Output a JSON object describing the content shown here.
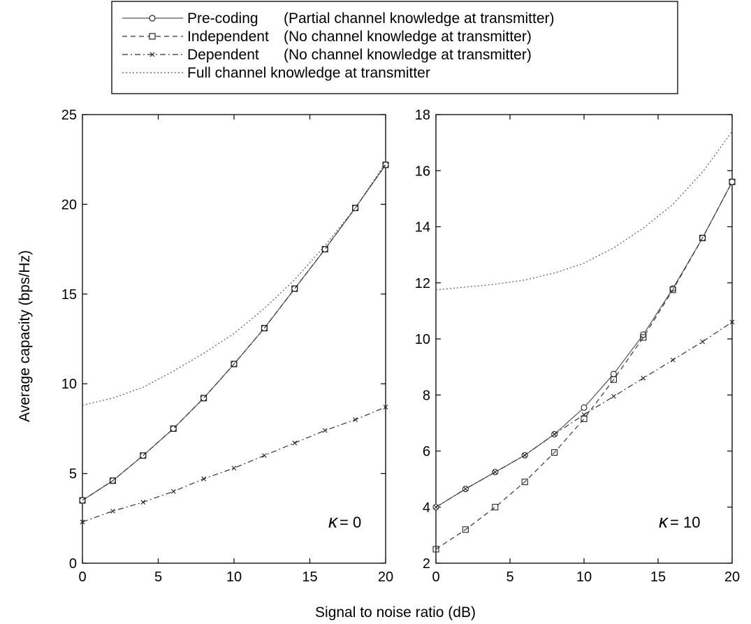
{
  "chart_data": [
    {
      "type": "line",
      "panel": "left",
      "annotation": {
        "symbol": "κ",
        "text": "= 0"
      },
      "xlabel": "Signal to noise ratio (dB)",
      "ylabel": "Average capacity (bps/Hz)",
      "xlim": [
        0,
        20
      ],
      "ylim": [
        0,
        25
      ],
      "xticks": [
        0,
        5,
        10,
        15,
        20
      ],
      "yticks": [
        0,
        5,
        10,
        15,
        20,
        25
      ],
      "x": [
        0,
        2,
        4,
        6,
        8,
        10,
        12,
        14,
        16,
        18,
        20
      ],
      "series": [
        {
          "name": "Pre-coding (Partial channel knowledge at transmitter)",
          "style": "solid",
          "marker": "circle",
          "values": [
            3.5,
            4.6,
            6.0,
            7.5,
            9.2,
            11.1,
            13.1,
            15.3,
            17.5,
            19.8,
            22.2
          ]
        },
        {
          "name": "Independent (No channel knowledge at transmitter)",
          "style": "dashed",
          "marker": "square",
          "values": [
            3.5,
            4.6,
            6.0,
            7.5,
            9.2,
            11.1,
            13.1,
            15.3,
            17.5,
            19.8,
            22.2
          ]
        },
        {
          "name": "Dependent (No channel knowledge at transmitter)",
          "style": "dashdot",
          "marker": "x",
          "values": [
            2.3,
            2.9,
            3.4,
            4.0,
            4.7,
            5.3,
            6.0,
            6.7,
            7.4,
            8.0,
            8.7
          ]
        },
        {
          "name": "Full channel knowledge at transmitter",
          "style": "dotted",
          "marker": "none",
          "values": [
            8.8,
            9.2,
            9.8,
            10.7,
            11.7,
            12.8,
            14.2,
            15.8,
            17.7,
            19.8,
            22.3
          ]
        }
      ]
    },
    {
      "type": "line",
      "panel": "right",
      "annotation": {
        "symbol": "κ",
        "text": "= 10"
      },
      "xlim": [
        0,
        20
      ],
      "ylim": [
        2,
        18
      ],
      "xticks": [
        0,
        5,
        10,
        15,
        20
      ],
      "yticks": [
        2,
        4,
        6,
        8,
        10,
        12,
        14,
        16,
        18
      ],
      "x": [
        0,
        2,
        4,
        6,
        8,
        10,
        12,
        14,
        16,
        18,
        20
      ],
      "series": [
        {
          "name": "Pre-coding (Partial channel knowledge at transmitter)",
          "style": "solid",
          "marker": "circle",
          "values": [
            4.0,
            4.65,
            5.25,
            5.85,
            6.6,
            7.55,
            8.75,
            10.15,
            11.8,
            13.6,
            15.6
          ]
        },
        {
          "name": "Independent (No channel knowledge at transmitter)",
          "style": "dashed",
          "marker": "square",
          "values": [
            2.5,
            3.2,
            4.0,
            4.9,
            5.95,
            7.15,
            8.55,
            10.05,
            11.75,
            13.6,
            15.6
          ]
        },
        {
          "name": "Dependent (No channel knowledge at transmitter)",
          "style": "dashdot",
          "marker": "x",
          "values": [
            4.0,
            4.65,
            5.25,
            5.85,
            6.6,
            7.3,
            7.95,
            8.6,
            9.25,
            9.9,
            10.6
          ]
        },
        {
          "name": "Full channel knowledge at transmitter",
          "style": "dotted",
          "marker": "none",
          "values": [
            11.75,
            11.85,
            11.95,
            12.1,
            12.35,
            12.7,
            13.25,
            13.95,
            14.8,
            15.95,
            17.4
          ]
        }
      ]
    }
  ],
  "legend": {
    "placement": "top",
    "entries": [
      {
        "label": "Pre-coding",
        "desc": "(Partial channel knowledge at transmitter)",
        "style": "solid",
        "marker": "circle"
      },
      {
        "label": "Independent",
        "desc": "(No channel knowledge at transmitter)",
        "style": "dashed",
        "marker": "square"
      },
      {
        "label": "Dependent",
        "desc": "(No channel knowledge at transmitter)",
        "style": "dashdot",
        "marker": "x"
      },
      {
        "label": "Full channel knowledge at transmitter",
        "desc": "",
        "style": "dotted",
        "marker": "none"
      }
    ]
  }
}
